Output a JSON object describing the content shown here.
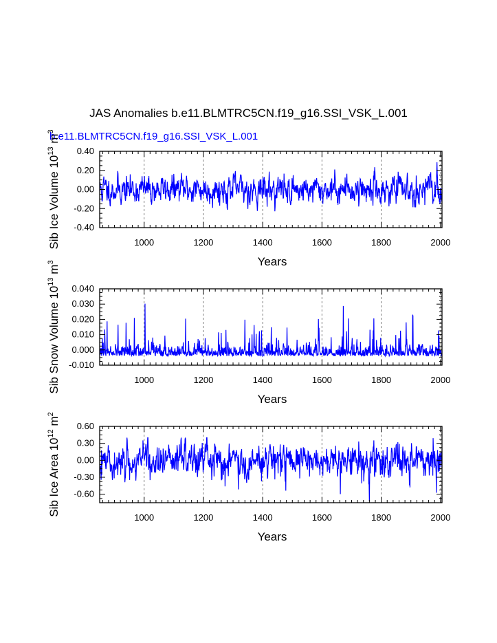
{
  "title": "JAS Anomalies b.e11.BLMTRC5CN.f19_g16.SSI_VSK_L.001",
  "case_label": "b.e11.BLMTRC5CN.f19_g16.SSI_VSK_L.001",
  "colors": {
    "series": "#0000ff",
    "axes": "#000000",
    "reference_lines": "#808080"
  },
  "chart_data": [
    {
      "type": "line",
      "series": [
        {
          "color": "#0000ff"
        }
      ],
      "ylabel": "Sib Ice Volume 10^13 m^3",
      "xlabel": "Years",
      "xlim": [
        850,
        2005
      ],
      "ylim": [
        -0.4,
        0.4
      ],
      "xticks": [
        "1000",
        "1200",
        "1400",
        "1600",
        "1800",
        "2000"
      ],
      "yticks": [
        "-0.40",
        "-0.20",
        "0.00",
        "0.20",
        "0.40"
      ],
      "reference_years": [
        1000,
        1200,
        1400,
        1600,
        1800,
        2000
      ],
      "grid": false
    },
    {
      "type": "line",
      "series": [
        {
          "color": "#0000ff"
        }
      ],
      "ylabel": "Sib Snow Volume 10^13 m^3",
      "xlabel": "Years",
      "xlim": [
        850,
        2005
      ],
      "ylim": [
        -0.01,
        0.04
      ],
      "xticks": [
        "1000",
        "1200",
        "1400",
        "1600",
        "1800",
        "2000"
      ],
      "yticks": [
        "-0.010",
        "0.000",
        "0.010",
        "0.020",
        "0.030",
        "0.040"
      ],
      "reference_years": [
        1000,
        1200,
        1400,
        1600,
        1800,
        2000
      ],
      "grid": false
    },
    {
      "type": "line",
      "series": [
        {
          "color": "#0000ff"
        }
      ],
      "ylabel": "Sib Ice Area 10^12 m^2",
      "xlabel": "Years",
      "xlim": [
        850,
        2005
      ],
      "ylim": [
        -0.75,
        0.6
      ],
      "xticks": [
        "1000",
        "1200",
        "1400",
        "1600",
        "1800",
        "2000"
      ],
      "yticks": [
        "-0.60",
        "-0.30",
        "0.00",
        "0.30",
        "0.60"
      ],
      "reference_years": [
        1000,
        1200,
        1400,
        1600,
        1800,
        2000
      ],
      "grid": false
    }
  ]
}
